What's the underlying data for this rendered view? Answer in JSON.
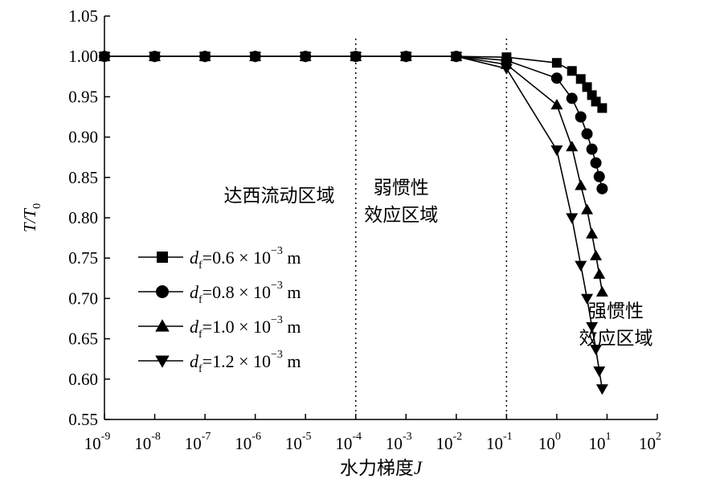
{
  "chart_data": {
    "type": "line",
    "x_scale": "log",
    "xlim_exponents": [
      -9,
      2
    ],
    "ylim": [
      0.55,
      1.05
    ],
    "grid": false,
    "ylabel": {
      "main": "T/T",
      "sub": "0"
    },
    "xlabel": {
      "main": "水力梯度",
      "var": "J"
    },
    "y_ticks": [
      0.55,
      0.6,
      0.65,
      0.7,
      0.75,
      0.8,
      0.85,
      0.9,
      0.95,
      1.0,
      1.05
    ],
    "y_tick_labels": [
      "0.55",
      "0.60",
      "0.65",
      "0.70",
      "0.75",
      "0.80",
      "0.85",
      "0.90",
      "0.95",
      "1.00",
      "1.05"
    ],
    "x_tick_exponents": [
      -9,
      -8,
      -7,
      -6,
      -5,
      -4,
      -3,
      -2,
      -1,
      0,
      1,
      2
    ],
    "x_tick_labels": [
      "-9",
      "-8",
      "-7",
      "-6",
      "-5",
      "-4",
      "-3",
      "-2",
      "-1",
      "0",
      "1",
      "2"
    ],
    "x_tick_base": "10",
    "boundaries": [
      0.0001,
      0.1
    ],
    "region_labels": [
      {
        "lines": [
          "达西流动区域"
        ],
        "anchor": [
          3e-06,
          0.82
        ]
      },
      {
        "lines": [
          "弱惯性",
          "效应区域"
        ],
        "anchor": [
          0.0008,
          0.83
        ]
      },
      {
        "lines": [
          "强惯性",
          "效应区域"
        ],
        "anchor": [
          15,
          0.677
        ]
      }
    ],
    "legend": {
      "placement": "lower-left"
    },
    "series": [
      {
        "name": "df=0.6×10−3 m",
        "legend": {
          "var": "d",
          "sub": "f",
          "text": "=0.6 × 10",
          "exp": "−3",
          "unit": " m"
        },
        "marker": "square",
        "x": [
          1e-09,
          1e-08,
          1e-07,
          1e-06,
          1e-05,
          0.0001,
          0.001,
          0.01,
          0.1,
          1,
          2,
          3,
          4,
          5,
          6,
          8
        ],
        "y": [
          1.0,
          1.0,
          1.0,
          1.0,
          1.0,
          1.0,
          1.0,
          1.0,
          0.999,
          0.992,
          0.982,
          0.972,
          0.962,
          0.952,
          0.944,
          0.936
        ]
      },
      {
        "name": "df=0.8×10−3 m",
        "legend": {
          "var": "d",
          "sub": "f",
          "text": "=0.8 × 10",
          "exp": "−3",
          "unit": " m"
        },
        "marker": "circle",
        "x": [
          1e-09,
          1e-08,
          1e-07,
          1e-06,
          1e-05,
          0.0001,
          0.001,
          0.01,
          0.1,
          1,
          2,
          3,
          4,
          5,
          6,
          7,
          8
        ],
        "y": [
          1.0,
          1.0,
          1.0,
          1.0,
          1.0,
          1.0,
          1.0,
          1.0,
          0.995,
          0.973,
          0.948,
          0.925,
          0.904,
          0.885,
          0.868,
          0.851,
          0.836
        ]
      },
      {
        "name": "df=1.0×10−3 m",
        "legend": {
          "var": "d",
          "sub": "f",
          "text": "=1.0 × 10",
          "exp": "−3",
          "unit": " m"
        },
        "marker": "triangle-up",
        "x": [
          1e-09,
          1e-08,
          1e-07,
          1e-06,
          1e-05,
          0.0001,
          0.001,
          0.01,
          0.1,
          1,
          2,
          3,
          4,
          5,
          6,
          7,
          8
        ],
        "y": [
          1.0,
          1.0,
          1.0,
          1.0,
          1.0,
          1.0,
          1.0,
          1.0,
          0.99,
          0.94,
          0.888,
          0.84,
          0.81,
          0.78,
          0.753,
          0.73,
          0.708
        ]
      },
      {
        "name": "df=1.2×10−3 m",
        "legend": {
          "var": "d",
          "sub": "f",
          "text": "=1.2 × 10",
          "exp": "−3",
          "unit": " m"
        },
        "marker": "triangle-down",
        "x": [
          1e-09,
          1e-08,
          1e-07,
          1e-06,
          1e-05,
          0.0001,
          0.001,
          0.01,
          0.1,
          1,
          2,
          3,
          4,
          5,
          6,
          7,
          8
        ],
        "y": [
          1.0,
          1.0,
          1.0,
          1.0,
          1.0,
          1.0,
          1.0,
          1.0,
          0.985,
          0.884,
          0.8,
          0.741,
          0.7,
          0.665,
          0.637,
          0.61,
          0.588
        ]
      }
    ]
  }
}
